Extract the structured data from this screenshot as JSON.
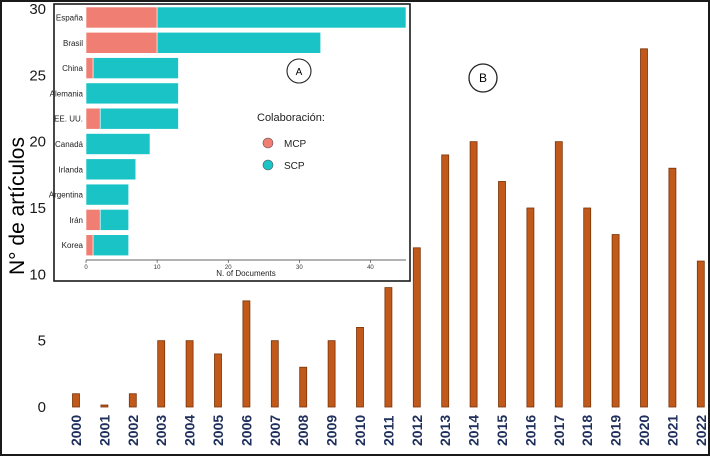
{
  "colors": {
    "bar": "#c0591a",
    "bar_edge": "#7a3208",
    "mcp": "#f07e72",
    "scp": "#19c3c6",
    "x_tick_text": "#1f2f5c"
  },
  "chart_data": [
    {
      "type": "bar",
      "title": "",
      "panel_label": "B",
      "xlabel": "",
      "ylabel": "N° de artículos",
      "ylim": [
        0,
        30
      ],
      "yticks": [
        0,
        5,
        10,
        15,
        20,
        25,
        30
      ],
      "categories": [
        "2000",
        "2001",
        "2002",
        "2003",
        "2004",
        "2005",
        "2006",
        "2007",
        "2008",
        "2009",
        "2010",
        "2011",
        "2012",
        "2013",
        "2014",
        "2015",
        "2016",
        "2017",
        "2018",
        "2019",
        "2020",
        "2021",
        "2022"
      ],
      "values": [
        1,
        0,
        1,
        5,
        5,
        4,
        8,
        5,
        3,
        5,
        6,
        9,
        12,
        19,
        20,
        17,
        15,
        20,
        15,
        13,
        27,
        18,
        11
      ],
      "grid": false
    },
    {
      "type": "bar",
      "orientation": "horizontal",
      "stacked": true,
      "panel_label": "A",
      "xlabel": "N. of Documents",
      "xlim": [
        0,
        45
      ],
      "xticks": [
        0,
        10,
        20,
        30,
        40
      ],
      "categories": [
        "España",
        "Brasil",
        "China",
        "Alemania",
        "EE. UU.",
        "Canadá",
        "Irlanda",
        "Argentina",
        "Irán",
        "Korea"
      ],
      "legend": {
        "title": "Colaboración:",
        "position": "right"
      },
      "series": [
        {
          "name": "MCP",
          "values": [
            10,
            10,
            1,
            0,
            2,
            0,
            0,
            0,
            2,
            1
          ]
        },
        {
          "name": "SCP",
          "values": [
            35,
            23,
            12,
            13,
            11,
            9,
            7,
            6,
            4,
            5
          ]
        }
      ]
    }
  ]
}
